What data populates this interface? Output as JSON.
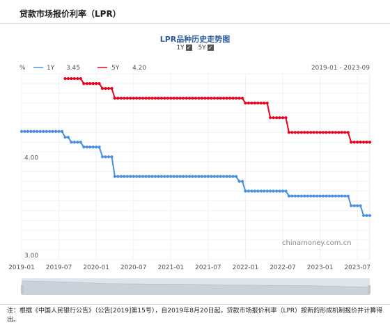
{
  "page": {
    "title": "贷款市场报价利率（LPR）",
    "note": "注：根据《中国人民银行公告》（公告[2019]第15号），自2019年8月20日起，贷款市场报价利率（LPR）按新的形成机制报价并计算得出。",
    "watermark": "chinamoney.com.cn"
  },
  "toggles": [
    {
      "label": "1Y",
      "checked": true
    },
    {
      "label": "5Y",
      "checked": true
    }
  ],
  "legend": {
    "unit": "%",
    "items": [
      {
        "name": "1Y",
        "value": "3.45",
        "color": "#4a90e2"
      },
      {
        "name": "5Y",
        "value": "4.20",
        "color": "#e8001c"
      }
    ]
  },
  "range_label": "2019-01 - 2023-09",
  "chart_data": {
    "type": "line",
    "title": "LPR品种历史走势图",
    "x_ticks": [
      "2019-01",
      "2019-07",
      "2020-01",
      "2020-07",
      "2021-01",
      "2021-07",
      "2022-01",
      "2022-07",
      "2023-01",
      "2023-07"
    ],
    "y_ticks": [
      "4.00",
      "3.00"
    ],
    "ylim": [
      3.0,
      4.9
    ],
    "xlim": [
      "2019-01",
      "2023-09"
    ],
    "grid": true,
    "legend_position": "top-left",
    "series": [
      {
        "name": "1Y",
        "color": "#4a90e2",
        "steps": [
          {
            "from": "2019-01",
            "value": 4.31
          },
          {
            "from": "2019-08",
            "value": 4.25
          },
          {
            "from": "2019-09",
            "value": 4.2
          },
          {
            "from": "2019-11",
            "value": 4.15
          },
          {
            "from": "2020-02",
            "value": 4.05
          },
          {
            "from": "2020-04",
            "value": 3.85
          },
          {
            "from": "2021-12",
            "value": 3.8
          },
          {
            "from": "2022-01",
            "value": 3.7
          },
          {
            "from": "2022-08",
            "value": 3.65
          },
          {
            "from": "2023-06",
            "value": 3.55
          },
          {
            "from": "2023-08",
            "value": 3.45
          }
        ],
        "end": "2023-09"
      },
      {
        "name": "5Y",
        "color": "#e8001c",
        "steps": [
          {
            "from": "2019-08",
            "value": 4.85
          },
          {
            "from": "2019-09",
            "value": 4.85
          },
          {
            "from": "2019-11",
            "value": 4.8
          },
          {
            "from": "2020-02",
            "value": 4.75
          },
          {
            "from": "2020-04",
            "value": 4.65
          },
          {
            "from": "2022-01",
            "value": 4.6
          },
          {
            "from": "2022-05",
            "value": 4.45
          },
          {
            "from": "2022-08",
            "value": 4.3
          },
          {
            "from": "2023-06",
            "value": 4.2
          }
        ],
        "end": "2023-09"
      }
    ]
  }
}
